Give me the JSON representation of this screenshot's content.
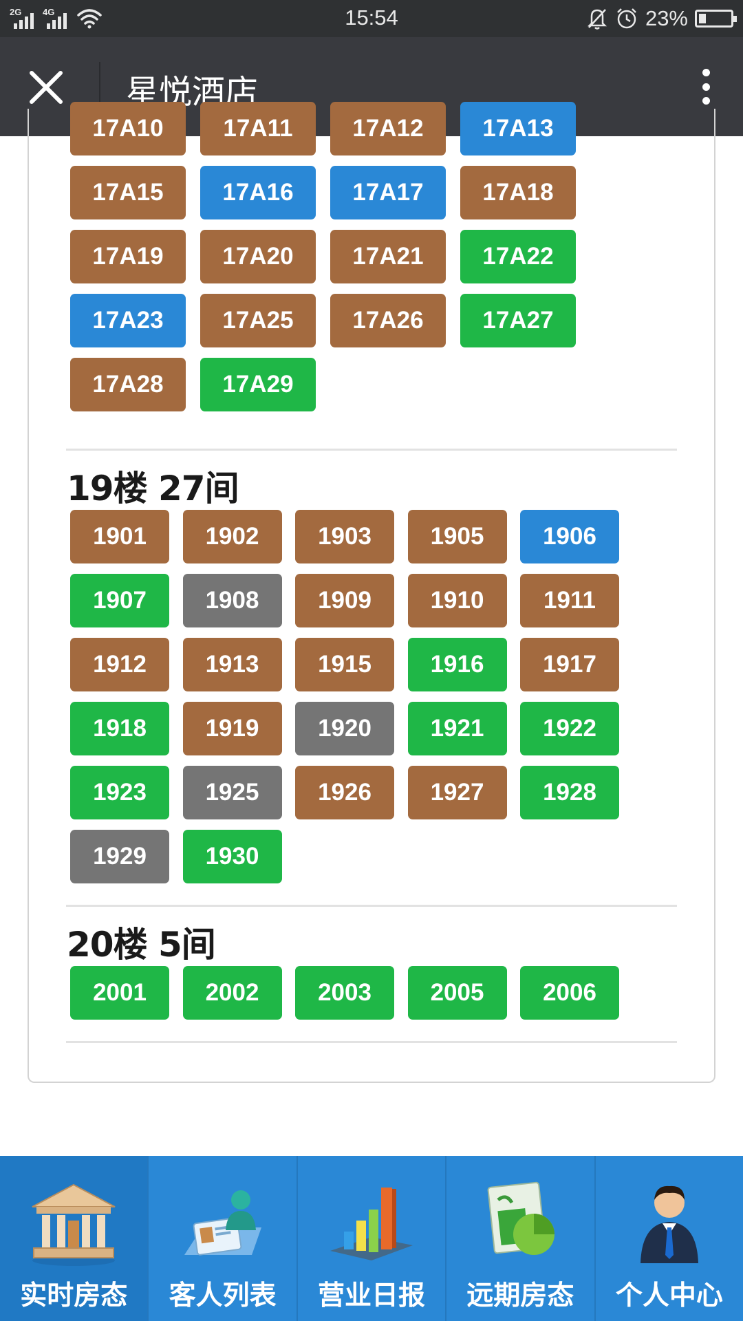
{
  "status_bar": {
    "network_1": "2G",
    "network_2": "4G",
    "time": "15:54",
    "battery_percent": "23%",
    "battery_level": 0.23,
    "icons": [
      "signal-icon",
      "wifi-icon",
      "bell-muted-icon",
      "alarm-icon",
      "battery-icon"
    ]
  },
  "title_bar": {
    "title": "星悦酒店",
    "close_icon": "close-icon",
    "more_icon": "more-vertical-icon"
  },
  "room_colors": {
    "brown": "#a36a3f",
    "blue": "#2a88d6",
    "green": "#1fb747",
    "gray": "#757575"
  },
  "floor_17a": {
    "rooms": [
      {
        "id": "17A10",
        "status": "brown"
      },
      {
        "id": "17A11",
        "status": "brown"
      },
      {
        "id": "17A12",
        "status": "brown"
      },
      {
        "id": "17A13",
        "status": "blue"
      },
      {
        "id": "17A15",
        "status": "brown"
      },
      {
        "id": "17A16",
        "status": "blue"
      },
      {
        "id": "17A17",
        "status": "blue"
      },
      {
        "id": "17A18",
        "status": "brown"
      },
      {
        "id": "17A19",
        "status": "brown"
      },
      {
        "id": "17A20",
        "status": "brown"
      },
      {
        "id": "17A21",
        "status": "brown"
      },
      {
        "id": "17A22",
        "status": "green"
      },
      {
        "id": "17A23",
        "status": "blue"
      },
      {
        "id": "17A25",
        "status": "brown"
      },
      {
        "id": "17A26",
        "status": "brown"
      },
      {
        "id": "17A27",
        "status": "green"
      },
      {
        "id": "17A28",
        "status": "brown"
      },
      {
        "id": "17A29",
        "status": "green"
      }
    ]
  },
  "floor_19": {
    "title": "19楼 27间",
    "rooms": [
      {
        "id": "1901",
        "status": "brown"
      },
      {
        "id": "1902",
        "status": "brown"
      },
      {
        "id": "1903",
        "status": "brown"
      },
      {
        "id": "1905",
        "status": "brown"
      },
      {
        "id": "1906",
        "status": "blue"
      },
      {
        "id": "1907",
        "status": "green"
      },
      {
        "id": "1908",
        "status": "gray"
      },
      {
        "id": "1909",
        "status": "brown"
      },
      {
        "id": "1910",
        "status": "brown"
      },
      {
        "id": "1911",
        "status": "brown"
      },
      {
        "id": "1912",
        "status": "brown"
      },
      {
        "id": "1913",
        "status": "brown"
      },
      {
        "id": "1915",
        "status": "brown"
      },
      {
        "id": "1916",
        "status": "green"
      },
      {
        "id": "1917",
        "status": "brown"
      },
      {
        "id": "1918",
        "status": "green"
      },
      {
        "id": "1919",
        "status": "brown"
      },
      {
        "id": "1920",
        "status": "gray"
      },
      {
        "id": "1921",
        "status": "green"
      },
      {
        "id": "1922",
        "status": "green"
      },
      {
        "id": "1923",
        "status": "green"
      },
      {
        "id": "1925",
        "status": "gray"
      },
      {
        "id": "1926",
        "status": "brown"
      },
      {
        "id": "1927",
        "status": "brown"
      },
      {
        "id": "1928",
        "status": "green"
      },
      {
        "id": "1929",
        "status": "gray"
      },
      {
        "id": "1930",
        "status": "green"
      }
    ]
  },
  "floor_20": {
    "title": "20楼 5间",
    "rooms": [
      {
        "id": "2001",
        "status": "green"
      },
      {
        "id": "2002",
        "status": "green"
      },
      {
        "id": "2003",
        "status": "green"
      },
      {
        "id": "2005",
        "status": "green"
      },
      {
        "id": "2006",
        "status": "green"
      }
    ]
  },
  "tab_bar": {
    "tabs": [
      {
        "label": "实时房态",
        "icon": "bank-building-icon",
        "active": true
      },
      {
        "label": "客人列表",
        "icon": "guest-card-icon",
        "active": false
      },
      {
        "label": "营业日报",
        "icon": "bar-chart-icon",
        "active": false
      },
      {
        "label": "远期房态",
        "icon": "pie-chart-doc-icon",
        "active": false
      },
      {
        "label": "个人中心",
        "icon": "person-icon",
        "active": false
      }
    ]
  }
}
